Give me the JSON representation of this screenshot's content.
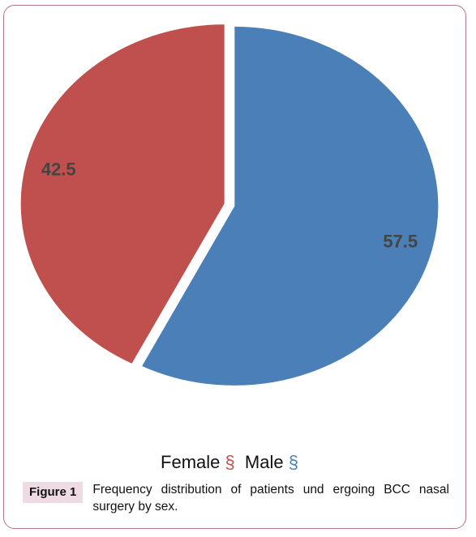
{
  "chart_data": {
    "type": "pie",
    "title": "",
    "slices": [
      {
        "name": "Male",
        "value": 57.5,
        "label": "57.5",
        "color": "#4a7fb7"
      },
      {
        "name": "Female",
        "value": 42.5,
        "label": "42.5",
        "color": "#c0504d"
      }
    ],
    "start_angle_deg": 0,
    "direction": "clockwise",
    "legend": {
      "placement": "bottom",
      "entries": [
        {
          "name": "Female",
          "mark": "§",
          "color": "#c0504d"
        },
        {
          "name": "Male",
          "mark": "§",
          "color": "#4a7fb7"
        }
      ]
    }
  },
  "figure": {
    "tag": "Figure 1",
    "caption": "Frequency distribution of patients und ergoing BCC nasal surgery by sex."
  },
  "colors": {
    "frame_border": "#b7738f",
    "tag_background": "#efdbe3"
  }
}
